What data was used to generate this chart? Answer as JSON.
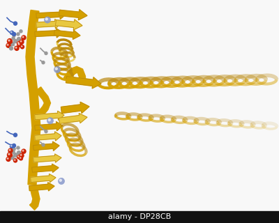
{
  "background_color": "#f8f8f8",
  "watermark_bg": "#111111",
  "watermark_text": "alamy - DP28CB",
  "watermark_text_color": "#ffffff",
  "watermark_fontsize": 8,
  "ribbon_color_main": "#d4a000",
  "ribbon_color_dark": "#b8860b",
  "ribbon_color_light": "#e8c840",
  "atom_red": "#cc2200",
  "atom_blue": "#4466bb",
  "atom_gray": "#999999",
  "atom_silver": "#bbbbbb",
  "fig_width": 4.0,
  "fig_height": 3.2,
  "dpi": 100
}
